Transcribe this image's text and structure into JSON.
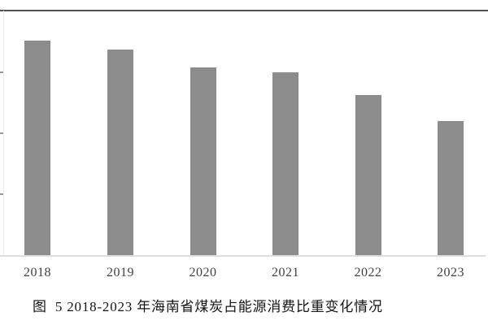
{
  "figure": {
    "caption": "图  5 2018-2023 年海南省煤炭占能源消费比重变化情况"
  },
  "colors": {
    "bar": "#8c8c8c",
    "baseline": "#dedede",
    "top_border": "#515151",
    "y_axis_line": "#ececec",
    "tick_fragment": "#999999",
    "x_label_text": "#3f3f3f",
    "caption_text": "#141414",
    "background": "#ffffff"
  },
  "chart_data": {
    "type": "bar",
    "title": "图 5 2018-2023 年海南省煤炭占能源消费比重变化情况",
    "categories": [
      "2018",
      "2019",
      "2020",
      "2021",
      "2022",
      "2023"
    ],
    "values": [
      35.1,
      33.6,
      30.7,
      29.9,
      26.2,
      22.0
    ],
    "xlabel": "",
    "ylabel": "",
    "ylim": [
      0,
      40
    ],
    "gridline_spacing": 10,
    "y_tick_labels_visible": false,
    "value_note": "y-axis tick labels cropped off at left edge of image; values estimated from the four equally spaced tick marks (assumed 10 per division), single gray series, no legend, no data labels",
    "legend_position": "none",
    "grid": "off"
  }
}
